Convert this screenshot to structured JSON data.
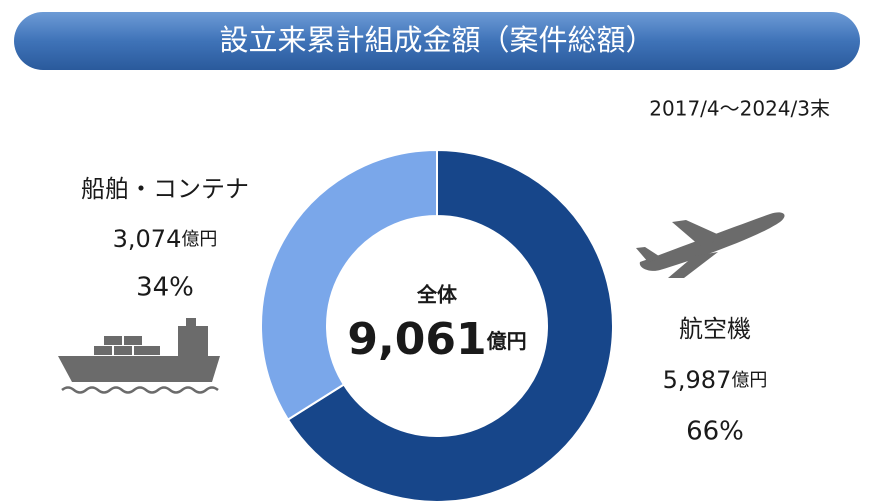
{
  "chart_data": {
    "type": "pie",
    "title": "設立来累計組成金額（案件総額）",
    "subtitle": "2017/4～2024/3末",
    "center_label": "全体",
    "total": 9061,
    "total_label": "9,061",
    "unit": "億円",
    "categories": [
      "航空機",
      "船舶・コンテナ"
    ],
    "values": [
      5987,
      3074
    ],
    "value_labels": [
      "5,987",
      "3,074"
    ],
    "percents": [
      66,
      34
    ],
    "percent_labels": [
      "66%",
      "34%"
    ],
    "colors": [
      "#17468a",
      "#7aa7ea"
    ]
  }
}
